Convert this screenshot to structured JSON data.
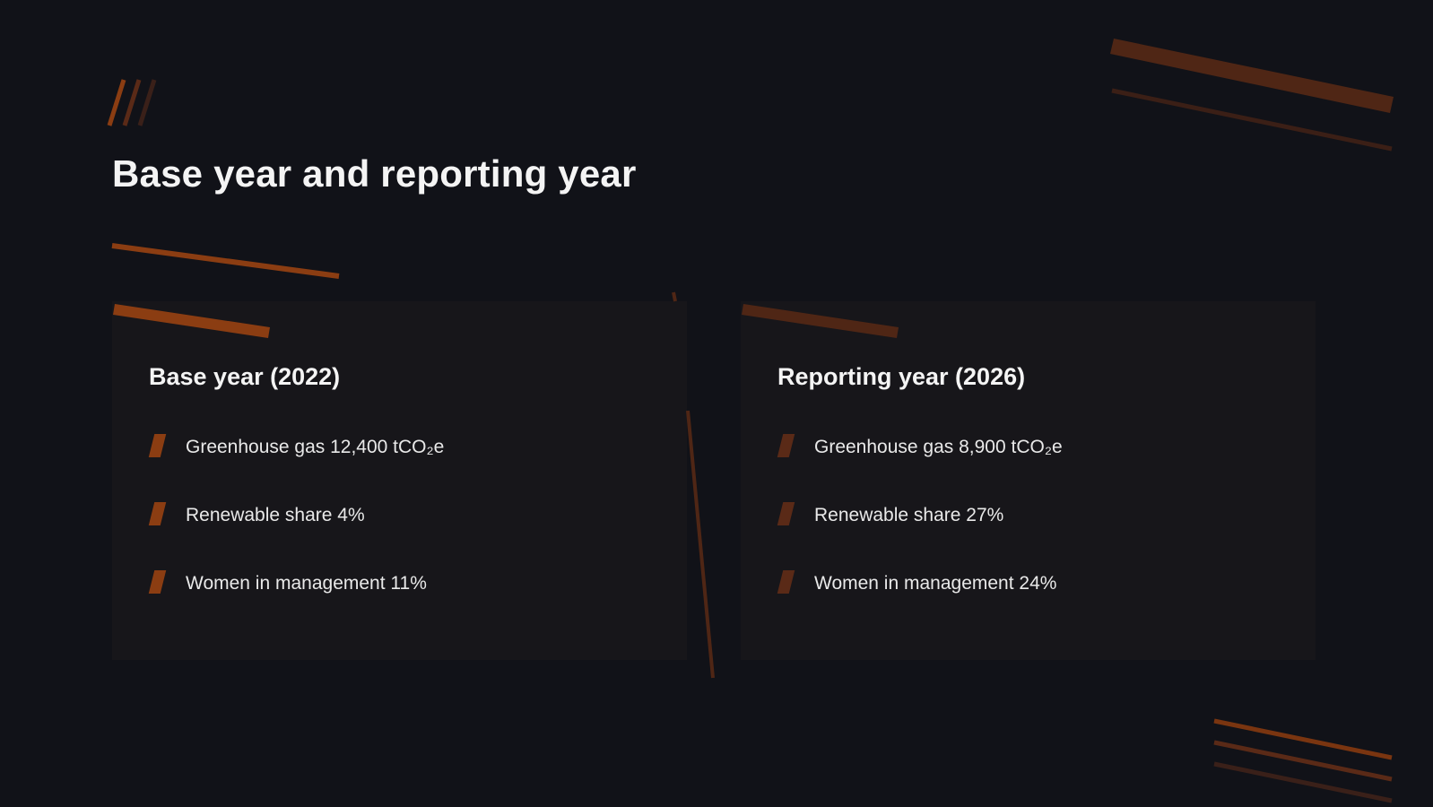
{
  "slide": {
    "title": "Base year and reporting year"
  },
  "panels": [
    {
      "heading": "Base year (2022)",
      "items": [
        {
          "label": "Greenhouse gas 12,400 tCO₂e"
        },
        {
          "label": "Renewable share 4%"
        },
        {
          "label": "Women in management 11%"
        }
      ]
    },
    {
      "heading": "Reporting year (2026)",
      "items": [
        {
          "label": "Greenhouse gas 8,900 tCO₂e"
        },
        {
          "label": "Renewable share 27%"
        },
        {
          "label": "Women in management 24%"
        }
      ]
    }
  ],
  "colors": {
    "background": "#111218",
    "panel": "#17161a",
    "accent": "#8b3d12",
    "accent_dark": "#5a2a17"
  }
}
